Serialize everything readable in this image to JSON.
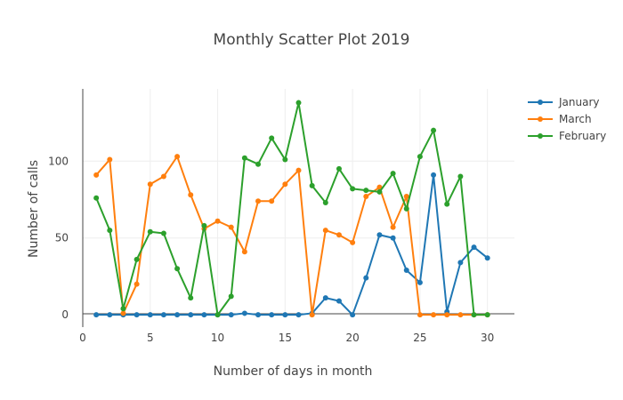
{
  "chart_data": {
    "type": "line",
    "title": "Monthly Scatter Plot 2019",
    "xlabel": "Number of days in month",
    "ylabel": "Number of calls",
    "xlim": [
      0,
      32
    ],
    "ylim": [
      -8,
      147
    ],
    "x_ticks": [
      0,
      5,
      10,
      15,
      20,
      25,
      30
    ],
    "y_ticks": [
      0,
      50,
      100
    ],
    "grid": true,
    "legend_position": "top-right",
    "series": [
      {
        "name": "January",
        "color": "#1f77b4",
        "x": [
          1,
          2,
          3,
          4,
          5,
          6,
          7,
          8,
          9,
          10,
          11,
          12,
          13,
          14,
          15,
          16,
          17,
          18,
          19,
          20,
          21,
          22,
          23,
          24,
          25,
          26,
          27,
          28,
          29,
          30
        ],
        "y": [
          0,
          0,
          0,
          0,
          0,
          0,
          0,
          0,
          0,
          0,
          0,
          1,
          0,
          0,
          0,
          0,
          1,
          11,
          9,
          0,
          24,
          52,
          50,
          29,
          21,
          91,
          2,
          34,
          44,
          37
        ]
      },
      {
        "name": "March",
        "color": "#ff7f0e",
        "x": [
          1,
          2,
          3,
          4,
          5,
          6,
          7,
          8,
          9,
          10,
          11,
          12,
          13,
          14,
          15,
          16,
          17,
          18,
          19,
          20,
          21,
          22,
          23,
          24,
          25,
          26,
          27,
          28,
          29,
          30
        ],
        "y": [
          91,
          101,
          1,
          20,
          85,
          90,
          103,
          78,
          56,
          61,
          57,
          41,
          74,
          74,
          85,
          94,
          0,
          55,
          52,
          47,
          77,
          83,
          57,
          77,
          0,
          0,
          0,
          0,
          0,
          0
        ]
      },
      {
        "name": "February",
        "color": "#2ca02c",
        "x": [
          1,
          2,
          3,
          4,
          5,
          6,
          7,
          8,
          9,
          10,
          11,
          12,
          13,
          14,
          15,
          16,
          17,
          18,
          19,
          20,
          21,
          22,
          23,
          24,
          25,
          26,
          27,
          28,
          29,
          30
        ],
        "y": [
          76,
          55,
          4,
          36,
          54,
          53,
          30,
          11,
          58,
          0,
          12,
          102,
          98,
          115,
          101,
          138,
          84,
          73,
          95,
          82,
          81,
          80,
          92,
          69,
          103,
          120,
          72,
          90,
          0,
          0
        ]
      }
    ]
  }
}
